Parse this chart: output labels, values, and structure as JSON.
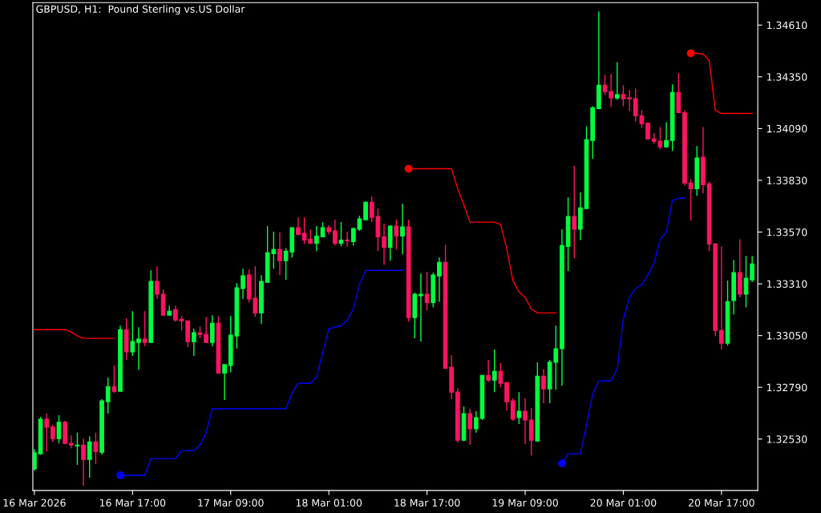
{
  "chart_data": {
    "type": "candlestick",
    "title": "GBPUSD, H1:  Pound Sterling vs.US Dollar",
    "x": [
      "2026-03-16T01:00",
      "2026-03-16T02:00",
      "2026-03-16T03:00",
      "2026-03-16T04:00",
      "2026-03-16T05:00",
      "2026-03-16T06:00",
      "2026-03-16T07:00",
      "2026-03-16T08:00",
      "2026-03-16T09:00",
      "2026-03-16T10:00",
      "2026-03-16T11:00",
      "2026-03-16T12:00",
      "2026-03-16T13:00",
      "2026-03-16T14:00",
      "2026-03-16T15:00",
      "2026-03-16T16:00",
      "2026-03-16T17:00",
      "2026-03-16T18:00",
      "2026-03-16T19:00",
      "2026-03-16T20:00",
      "2026-03-16T21:00",
      "2026-03-16T22:00",
      "2026-03-16T23:00",
      "2026-03-17T00:00",
      "2026-03-17T01:00",
      "2026-03-17T02:00",
      "2026-03-17T03:00",
      "2026-03-17T04:00",
      "2026-03-17T05:00",
      "2026-03-17T06:00",
      "2026-03-17T07:00",
      "2026-03-17T08:00",
      "2026-03-17T09:00",
      "2026-03-17T10:00",
      "2026-03-17T11:00",
      "2026-03-17T12:00",
      "2026-03-17T13:00",
      "2026-03-17T14:00",
      "2026-03-17T15:00",
      "2026-03-17T16:00",
      "2026-03-17T17:00",
      "2026-03-17T18:00",
      "2026-03-17T19:00",
      "2026-03-17T20:00",
      "2026-03-17T21:00",
      "2026-03-17T22:00",
      "2026-03-17T23:00",
      "2026-03-18T00:00",
      "2026-03-18T01:00",
      "2026-03-18T02:00",
      "2026-03-18T03:00",
      "2026-03-18T04:00",
      "2026-03-18T05:00",
      "2026-03-18T06:00",
      "2026-03-18T07:00",
      "2026-03-18T08:00",
      "2026-03-18T09:00",
      "2026-03-18T10:00",
      "2026-03-18T11:00",
      "2026-03-18T12:00",
      "2026-03-18T13:00",
      "2026-03-18T14:00",
      "2026-03-18T15:00",
      "2026-03-18T16:00",
      "2026-03-18T17:00",
      "2026-03-18T18:00",
      "2026-03-18T19:00",
      "2026-03-18T20:00",
      "2026-03-18T21:00",
      "2026-03-18T22:00",
      "2026-03-18T23:00",
      "2026-03-19T00:00",
      "2026-03-19T01:00",
      "2026-03-19T02:00",
      "2026-03-19T03:00",
      "2026-03-19T04:00",
      "2026-03-19T05:00",
      "2026-03-19T06:00",
      "2026-03-19T07:00",
      "2026-03-19T08:00",
      "2026-03-19T09:00",
      "2026-03-19T10:00",
      "2026-03-19T11:00",
      "2026-03-19T12:00",
      "2026-03-19T13:00",
      "2026-03-19T14:00",
      "2026-03-19T15:00",
      "2026-03-19T16:00",
      "2026-03-19T17:00",
      "2026-03-19T18:00",
      "2026-03-19T19:00",
      "2026-03-19T20:00",
      "2026-03-19T21:00",
      "2026-03-19T22:00",
      "2026-03-19T23:00",
      "2026-03-20T00:00",
      "2026-03-20T01:00",
      "2026-03-20T02:00",
      "2026-03-20T03:00",
      "2026-03-20T04:00",
      "2026-03-20T05:00",
      "2026-03-20T06:00",
      "2026-03-20T07:00",
      "2026-03-20T08:00",
      "2026-03-20T09:00",
      "2026-03-20T10:00",
      "2026-03-20T11:00",
      "2026-03-20T12:00",
      "2026-03-20T13:00",
      "2026-03-20T14:00",
      "2026-03-20T15:00",
      "2026-03-20T16:00",
      "2026-03-20T17:00",
      "2026-03-20T18:00",
      "2026-03-20T19:00",
      "2026-03-20T20:00",
      "2026-03-20T21:00",
      "2026-03-20T22:00"
    ],
    "ohlc": [
      [
        1.3238,
        1.3248,
        1.32372,
        1.3246
      ],
      [
        1.32456,
        1.32642,
        1.32452,
        1.3263
      ],
      [
        1.3263,
        1.32658,
        1.32468,
        1.3259
      ],
      [
        1.3259,
        1.32602,
        1.32516,
        1.32532
      ],
      [
        1.32532,
        1.3265,
        1.32508,
        1.32614
      ],
      [
        1.32614,
        1.32622,
        1.32504,
        1.32508
      ],
      [
        1.32508,
        1.32548,
        1.32484,
        1.325
      ],
      [
        1.32496,
        1.32562,
        1.324,
        1.325
      ],
      [
        1.325,
        1.32532,
        1.32296,
        1.32428
      ],
      [
        1.32428,
        1.32544,
        1.32336,
        1.32516
      ],
      [
        1.32516,
        1.32562,
        1.32404,
        1.32468
      ],
      [
        1.32464,
        1.3273,
        1.32452,
        1.32722
      ],
      [
        1.32718,
        1.32838,
        1.32658,
        1.32794
      ],
      [
        1.32794,
        1.329,
        1.32762,
        1.3277
      ],
      [
        1.3277,
        1.331,
        1.3277,
        1.3308
      ],
      [
        1.3308,
        1.33136,
        1.32928,
        1.32968
      ],
      [
        1.32968,
        1.33172,
        1.32948,
        1.3302
      ],
      [
        1.33016,
        1.33092,
        1.32878,
        1.33032
      ],
      [
        1.33032,
        1.33172,
        1.32996,
        1.33016
      ],
      [
        1.33016,
        1.33378,
        1.33012,
        1.33322
      ],
      [
        1.33322,
        1.33398,
        1.33234,
        1.33258
      ],
      [
        1.33258,
        1.33282,
        1.33152,
        1.33152
      ],
      [
        1.33152,
        1.332,
        1.33152,
        1.33172
      ],
      [
        1.3318,
        1.332,
        1.3312,
        1.33128
      ],
      [
        1.33132,
        1.33148,
        1.33076,
        1.33124
      ],
      [
        1.33124,
        1.33124,
        1.32992,
        1.3302
      ],
      [
        1.3302,
        1.33084,
        1.32948,
        1.33064
      ],
      [
        1.33064,
        1.33096,
        1.33036,
        1.33056
      ],
      [
        1.33056,
        1.33144,
        1.33012,
        1.33016
      ],
      [
        1.33016,
        1.33152,
        1.32996,
        1.33112
      ],
      [
        1.33112,
        1.33148,
        1.32858,
        1.32862
      ],
      [
        1.32862,
        1.32904,
        1.32726,
        1.32904
      ],
      [
        1.329,
        1.33148,
        1.32866,
        1.33052
      ],
      [
        1.33048,
        1.33314,
        1.32984,
        1.3329
      ],
      [
        1.33286,
        1.33386,
        1.33234,
        1.3335
      ],
      [
        1.33354,
        1.33382,
        1.33216,
        1.33234
      ],
      [
        1.33238,
        1.33398,
        1.33144,
        1.33164
      ],
      [
        1.33164,
        1.33354,
        1.33108,
        1.33322
      ],
      [
        1.33318,
        1.336,
        1.33318,
        1.33466
      ],
      [
        1.33462,
        1.33572,
        1.33386,
        1.33482
      ],
      [
        1.33482,
        1.33568,
        1.33354,
        1.33426
      ],
      [
        1.33426,
        1.3349,
        1.3333,
        1.33474
      ],
      [
        1.3347,
        1.33592,
        1.33442,
        1.33592
      ],
      [
        1.33592,
        1.33644,
        1.33554,
        1.33558
      ],
      [
        1.33564,
        1.33644,
        1.3351,
        1.3353
      ],
      [
        1.33534,
        1.33584,
        1.3351,
        1.33514
      ],
      [
        1.33514,
        1.336,
        1.33474,
        1.3355
      ],
      [
        1.33546,
        1.3362,
        1.33546,
        1.33592
      ],
      [
        1.33592,
        1.33604,
        1.33558,
        1.33572
      ],
      [
        1.33576,
        1.33632,
        1.33502,
        1.33514
      ],
      [
        1.33514,
        1.3362,
        1.33498,
        1.3353
      ],
      [
        1.3353,
        1.33572,
        1.33498,
        1.33526
      ],
      [
        1.33522,
        1.33592,
        1.33502,
        1.33588
      ],
      [
        1.33584,
        1.33652,
        1.33576,
        1.33636
      ],
      [
        1.33632,
        1.33724,
        1.33632,
        1.3372
      ],
      [
        1.3372,
        1.33748,
        1.3362,
        1.33644
      ],
      [
        1.33648,
        1.33688,
        1.33474,
        1.33546
      ],
      [
        1.33546,
        1.33612,
        1.33406,
        1.33494
      ],
      [
        1.33494,
        1.33604,
        1.33426,
        1.336
      ],
      [
        1.336,
        1.33632,
        1.33482,
        1.3355
      ],
      [
        1.3355,
        1.33712,
        1.33458,
        1.33596
      ],
      [
        1.33596,
        1.33632,
        1.3312,
        1.3314
      ],
      [
        1.3314,
        1.33266,
        1.33036,
        1.33258
      ],
      [
        1.3325,
        1.33362,
        1.3302,
        1.33258
      ],
      [
        1.33258,
        1.3337,
        1.33176,
        1.33216
      ],
      [
        1.33216,
        1.33366,
        1.33192,
        1.33354
      ],
      [
        1.3335,
        1.33442,
        1.3322,
        1.33418
      ],
      [
        1.33418,
        1.33506,
        1.32886,
        1.32886
      ],
      [
        1.3289,
        1.32952,
        1.3273,
        1.32766
      ],
      [
        1.32766,
        1.32786,
        1.32512,
        1.32524
      ],
      [
        1.32524,
        1.32694,
        1.3252,
        1.32658
      ],
      [
        1.32658,
        1.32682,
        1.325,
        1.32582
      ],
      [
        1.32582,
        1.3267,
        1.32562,
        1.32638
      ],
      [
        1.32634,
        1.3285,
        1.32626,
        1.3285
      ],
      [
        1.3285,
        1.32928,
        1.32818,
        1.32826
      ],
      [
        1.32826,
        1.3298,
        1.32766,
        1.3287
      ],
      [
        1.3287,
        1.32912,
        1.3279,
        1.3281
      ],
      [
        1.32814,
        1.32814,
        1.32674,
        1.32718
      ],
      [
        1.32722,
        1.32734,
        1.32622,
        1.3263
      ],
      [
        1.32638,
        1.32766,
        1.32606,
        1.3267
      ],
      [
        1.3267,
        1.32734,
        1.32504,
        1.32626
      ],
      [
        1.32626,
        1.32686,
        1.32448,
        1.32524
      ],
      [
        1.3252,
        1.32916,
        1.3252,
        1.32846
      ],
      [
        1.32846,
        1.32882,
        1.3271,
        1.32782
      ],
      [
        1.32782,
        1.32928,
        1.3271,
        1.32916
      ],
      [
        1.32916,
        1.331,
        1.32778,
        1.32984
      ],
      [
        1.32984,
        1.33584,
        1.32798,
        1.33502
      ],
      [
        1.33498,
        1.33744,
        1.33374,
        1.33648
      ],
      [
        1.33648,
        1.33902,
        1.33438,
        1.33584
      ],
      [
        1.33584,
        1.33768,
        1.3353,
        1.33692
      ],
      [
        1.33688,
        1.34102,
        1.33688,
        1.34034
      ],
      [
        1.3403,
        1.34202,
        1.33938,
        1.34194
      ],
      [
        1.3419,
        1.34678,
        1.3419,
        1.34308
      ],
      [
        1.34308,
        1.3436,
        1.3426,
        1.34276
      ],
      [
        1.34276,
        1.34364,
        1.34198,
        1.34244
      ],
      [
        1.34244,
        1.34424,
        1.34236,
        1.3426
      ],
      [
        1.3426,
        1.34308,
        1.34202,
        1.3424
      ],
      [
        1.34244,
        1.34284,
        1.34178,
        1.3424
      ],
      [
        1.3424,
        1.34292,
        1.34126,
        1.34154
      ],
      [
        1.34154,
        1.34182,
        1.34094,
        1.34114
      ],
      [
        1.34118,
        1.34118,
        1.34034,
        1.34038
      ],
      [
        1.34038,
        1.34066,
        1.34014,
        1.34026
      ],
      [
        1.34026,
        1.34098,
        1.33986,
        1.33998
      ],
      [
        1.33998,
        1.34122,
        1.33994,
        1.3403
      ],
      [
        1.3403,
        1.34312,
        1.33978,
        1.34272
      ],
      [
        1.34272,
        1.34368,
        1.3417,
        1.3417
      ],
      [
        1.3417,
        1.34182,
        1.33804,
        1.33816
      ],
      [
        1.33816,
        1.33836,
        1.33628,
        1.33788
      ],
      [
        1.33788,
        1.34002,
        1.33752,
        1.33942
      ],
      [
        1.33946,
        1.34098,
        1.33764,
        1.33808
      ],
      [
        1.33812,
        1.33824,
        1.33474,
        1.3351
      ],
      [
        1.3351,
        1.33514,
        1.33048,
        1.33076
      ],
      [
        1.33076,
        1.33498,
        1.3298,
        1.33012
      ],
      [
        1.33012,
        1.33326,
        1.33,
        1.3322
      ],
      [
        1.33226,
        1.3343,
        1.33156,
        1.33366
      ],
      [
        1.33366,
        1.33534,
        1.33242,
        1.33258
      ],
      [
        1.33258,
        1.3345,
        1.33192,
        1.33338
      ],
      [
        1.3333,
        1.3345,
        1.33318,
        1.3341
      ]
    ],
    "colors": [
      "#00ff40",
      "#00ff40",
      "#ff1464",
      "#ff1464",
      "#00ff40",
      "#ff1464",
      "#ff1464",
      "#00ff40",
      "#ff1464",
      "#00ff40",
      "#ff1464",
      "#00ff40",
      "#00ff40",
      "#ff1464",
      "#00ff40",
      "#ff1464",
      "#00ff40",
      "#00ff40",
      "#ff1464",
      "#00ff40",
      "#ff1464",
      "#ff1464",
      "#00ff40",
      "#ff1464",
      "#ff1464",
      "#ff1464",
      "#00ff40",
      "#ff1464",
      "#ff1464",
      "#00ff40",
      "#ff1464",
      "#00ff40",
      "#00ff40",
      "#00ff40",
      "#00ff40",
      "#ff1464",
      "#ff1464",
      "#00ff40",
      "#00ff40",
      "#00ff40",
      "#ff1464",
      "#00ff40",
      "#00ff40",
      "#ff1464",
      "#ff1464",
      "#ff1464",
      "#00ff40",
      "#00ff40",
      "#ff1464",
      "#ff1464",
      "#00ff40",
      "#ff1464",
      "#00ff40",
      "#00ff40",
      "#00ff40",
      "#ff1464",
      "#ff1464",
      "#ff1464",
      "#00ff40",
      "#ff1464",
      "#00ff40",
      "#ff1464",
      "#00ff40",
      "#00ff40",
      "#ff1464",
      "#00ff40",
      "#00ff40",
      "#ff1464",
      "#ff1464",
      "#ff1464",
      "#00ff40",
      "#ff1464",
      "#00ff40",
      "#00ff40",
      "#ff1464",
      "#00ff40",
      "#ff1464",
      "#ff1464",
      "#ff1464",
      "#00ff40",
      "#ff1464",
      "#ff1464",
      "#00ff40",
      "#ff1464",
      "#00ff40",
      "#00ff40",
      "#00ff40",
      "#00ff40",
      "#ff1464",
      "#00ff40",
      "#00ff40",
      "#00ff40",
      "#00ff40",
      "#ff1464",
      "#ff1464",
      "#00ff40",
      "#ff1464",
      "#ff1464",
      "#ff1464",
      "#ff1464",
      "#ff1464",
      "#ff1464",
      "#ff1464",
      "#00ff40",
      "#00ff40",
      "#ff1464",
      "#ff1464",
      "#ff1464",
      "#00ff40",
      "#ff1464",
      "#ff1464",
      "#ff1464",
      "#ff1464",
      "#00ff40",
      "#00ff40",
      "#ff1464",
      "#00ff40",
      "#00ff40"
    ],
    "series": [
      {
        "type": "line",
        "color": "#ff0000",
        "values": [
          1.3308,
          1.3308,
          1.3308,
          1.3308,
          1.3308,
          1.3308,
          1.33068,
          1.33048,
          1.33036,
          1.33036,
          1.33036,
          1.33036,
          1.33036,
          1.33036,
          null,
          null,
          null,
          null,
          null,
          null,
          null,
          null,
          null,
          null,
          null,
          null,
          null,
          null,
          null,
          null,
          null,
          null,
          null,
          null,
          null,
          null,
          null,
          null,
          null,
          null,
          null,
          null,
          null,
          null,
          null,
          null,
          null,
          null,
          null,
          null,
          null,
          null,
          null,
          null,
          null,
          null,
          null,
          null,
          null,
          null,
          null,
          1.33888,
          1.33888,
          1.33888,
          1.33888,
          1.33888,
          1.33888,
          1.33888,
          1.33888,
          1.33788,
          1.33708,
          1.3362,
          1.3362,
          1.3362,
          1.3362,
          1.3362,
          1.33608,
          1.33486,
          1.33326,
          1.3327,
          1.33242,
          1.33184,
          1.33164,
          1.33164,
          1.33164,
          1.33164,
          null,
          null,
          null,
          null,
          null,
          null,
          null,
          null,
          null,
          null,
          null,
          null,
          null,
          null,
          null,
          null,
          null,
          null,
          null,
          null,
          null,
          1.34468,
          1.34468,
          1.34464,
          1.34432,
          1.34182,
          1.34166,
          1.34166,
          1.34166,
          1.34166,
          1.34166,
          1.34166
        ]
      },
      {
        "type": "line",
        "color": "#0000ff",
        "values": [
          null,
          null,
          null,
          null,
          null,
          null,
          null,
          null,
          null,
          null,
          null,
          null,
          null,
          null,
          1.32348,
          1.32348,
          1.32348,
          1.32348,
          1.32348,
          1.32432,
          1.32432,
          1.32432,
          1.32432,
          1.32432,
          1.32472,
          1.32472,
          1.32472,
          1.325,
          1.32562,
          1.32682,
          1.32682,
          1.32682,
          1.32682,
          1.32682,
          1.32682,
          1.32682,
          1.32682,
          1.32682,
          1.32682,
          1.32682,
          1.32682,
          1.32682,
          1.32762,
          1.3281,
          1.3281,
          1.3281,
          1.32842,
          1.32964,
          1.33084,
          1.33092,
          1.331,
          1.33128,
          1.33184,
          1.33306,
          1.33378,
          1.33378,
          1.33378,
          1.33378,
          1.33378,
          1.33378,
          1.33378,
          null,
          null,
          null,
          null,
          null,
          null,
          null,
          null,
          null,
          null,
          null,
          null,
          null,
          null,
          null,
          null,
          null,
          null,
          null,
          null,
          null,
          null,
          null,
          null,
          null,
          1.32408,
          1.32456,
          1.32456,
          1.32456,
          1.32602,
          1.32754,
          1.32822,
          1.32822,
          1.32822,
          1.32882,
          1.33132,
          1.33242,
          1.33286,
          1.33306,
          1.33354,
          1.33414,
          1.33534,
          1.33568,
          1.33728,
          1.3374,
          1.3374,
          null,
          null,
          null,
          null,
          null,
          null,
          null,
          null,
          null,
          null,
          null
        ]
      },
      {
        "type": "scatter",
        "color": "#ff0000",
        "marker": "circle",
        "x": [
          "2026-03-18T14:00",
          "2026-03-20T12:00"
        ],
        "values": [
          1.33888,
          1.34468
        ]
      },
      {
        "type": "scatter",
        "color": "#0000ff",
        "marker": "circle",
        "x": [
          "2026-03-16T15:00",
          "2026-03-19T15:00"
        ],
        "values": [
          1.32348,
          1.32408
        ]
      }
    ],
    "xlim": [
      "2026-03-16T00:45",
      "2026-03-20T22:55"
    ],
    "xticks": [
      {
        "value": "2026-03-16T01:00",
        "label": "16 Mar 2026"
      },
      {
        "value": "2026-03-16T17:00",
        "label": "16 Mar 17:00"
      },
      {
        "value": "2026-03-17T09:00",
        "label": "17 Mar 09:00"
      },
      {
        "value": "2026-03-18T01:00",
        "label": "18 Mar 01:00"
      },
      {
        "value": "2026-03-18T17:00",
        "label": "18 Mar 17:00"
      },
      {
        "value": "2026-03-19T09:00",
        "label": "19 Mar 09:00"
      },
      {
        "value": "2026-03-20T01:00",
        "label": "20 Mar 01:00"
      },
      {
        "value": "2026-03-20T17:00",
        "label": "20 Mar 17:00"
      }
    ],
    "ylim": [
      1.32272,
      1.34723
    ],
    "yticks": [
      {
        "value": 1.3253,
        "label": "1.32530"
      },
      {
        "value": 1.3279,
        "label": "1.32790"
      },
      {
        "value": 1.3305,
        "label": "1.33050"
      },
      {
        "value": 1.3331,
        "label": "1.33310"
      },
      {
        "value": 1.3357,
        "label": "1.33570"
      },
      {
        "value": 1.3383,
        "label": "1.33830"
      },
      {
        "value": 1.3409,
        "label": "1.34090"
      },
      {
        "value": 1.3435,
        "label": "1.34350"
      },
      {
        "value": 1.3461,
        "label": "1.34610"
      }
    ],
    "line_style": "solid",
    "grid": false
  }
}
